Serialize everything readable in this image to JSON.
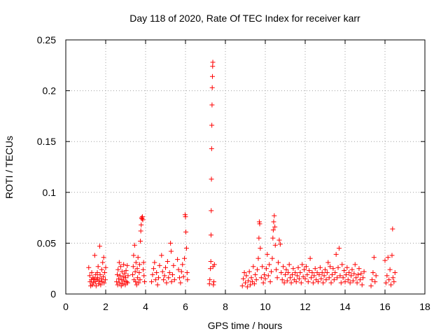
{
  "chart_data": {
    "type": "scatter",
    "title": "Day 118 of 2020, Rate Of TEC Index for receiver karr",
    "xlabel": "GPS time / hours",
    "ylabel": "ROTI / TECUs",
    "xlim": [
      0,
      18
    ],
    "ylim": [
      0,
      0.25
    ],
    "xticks": [
      0,
      2,
      4,
      6,
      8,
      10,
      12,
      14,
      16,
      18
    ],
    "xtick_labels": [
      "0",
      "2",
      "4",
      "6",
      "8",
      "10",
      "12",
      "14",
      "16",
      "18"
    ],
    "yticks": [
      0,
      0.05,
      0.1,
      0.15,
      0.2,
      0.25
    ],
    "ytick_labels": [
      "0",
      "0.05",
      "0.1",
      "0.15",
      "0.2",
      "0.25"
    ],
    "grid": true,
    "marker": "+",
    "colors": {
      "marker": "#ff0000",
      "axes": "#000000",
      "grid": "#a0a0a0",
      "background": "#ffffff"
    },
    "series": [
      {
        "name": "ROTI",
        "points": [
          [
            1.15,
            0.026
          ],
          [
            1.2,
            0.018
          ],
          [
            1.22,
            0.012
          ],
          [
            1.25,
            0.008
          ],
          [
            1.28,
            0.014
          ],
          [
            1.3,
            0.021
          ],
          [
            1.33,
            0.009
          ],
          [
            1.36,
            0.016
          ],
          [
            1.38,
            0.011
          ],
          [
            1.42,
            0.015
          ],
          [
            1.45,
            0.038
          ],
          [
            1.48,
            0.012
          ],
          [
            1.5,
            0.019
          ],
          [
            1.52,
            0.008
          ],
          [
            1.55,
            0.014
          ],
          [
            1.58,
            0.021
          ],
          [
            1.6,
            0.016
          ],
          [
            1.62,
            0.027
          ],
          [
            1.65,
            0.01
          ],
          [
            1.68,
            0.013
          ],
          [
            1.7,
            0.047
          ],
          [
            1.72,
            0.019
          ],
          [
            1.75,
            0.009
          ],
          [
            1.78,
            0.015
          ],
          [
            1.8,
            0.024
          ],
          [
            1.82,
            0.012
          ],
          [
            1.85,
            0.031
          ],
          [
            1.88,
            0.017
          ],
          [
            1.9,
            0.036
          ],
          [
            1.92,
            0.011
          ],
          [
            1.95,
            0.021
          ],
          [
            1.98,
            0.014
          ],
          [
            2.0,
            0.026
          ],
          [
            2.55,
            0.012
          ],
          [
            2.58,
            0.019
          ],
          [
            2.6,
            0.009
          ],
          [
            2.62,
            0.024
          ],
          [
            2.65,
            0.015
          ],
          [
            2.68,
            0.031
          ],
          [
            2.7,
            0.011
          ],
          [
            2.72,
            0.018
          ],
          [
            2.75,
            0.027
          ],
          [
            2.78,
            0.008
          ],
          [
            2.8,
            0.014
          ],
          [
            2.82,
            0.022
          ],
          [
            2.85,
            0.01
          ],
          [
            2.88,
            0.017
          ],
          [
            2.9,
            0.029
          ],
          [
            2.92,
            0.013
          ],
          [
            2.95,
            0.02
          ],
          [
            2.98,
            0.009
          ],
          [
            3.0,
            0.016
          ],
          [
            3.02,
            0.023
          ],
          [
            3.05,
            0.012
          ],
          [
            3.08,
            0.028
          ],
          [
            3.1,
            0.011
          ],
          [
            3.12,
            0.018
          ],
          [
            3.35,
            0.019
          ],
          [
            3.38,
            0.027
          ],
          [
            3.4,
            0.038
          ],
          [
            3.42,
            0.014
          ],
          [
            3.45,
            0.048
          ],
          [
            3.48,
            0.022
          ],
          [
            3.5,
            0.012
          ],
          [
            3.52,
            0.031
          ],
          [
            3.55,
            0.009
          ],
          [
            3.58,
            0.025
          ],
          [
            3.6,
            0.016
          ],
          [
            3.62,
            0.036
          ],
          [
            3.65,
            0.011
          ],
          [
            3.68,
            0.021
          ],
          [
            3.7,
            0.029
          ],
          [
            3.72,
            0.014
          ],
          [
            3.74,
            0.052
          ],
          [
            3.76,
            0.062
          ],
          [
            3.78,
            0.068
          ],
          [
            3.8,
            0.075
          ],
          [
            3.82,
            0.074
          ],
          [
            3.84,
            0.076
          ],
          [
            3.86,
            0.073
          ],
          [
            3.88,
            0.024
          ],
          [
            3.9,
            0.031
          ],
          [
            3.92,
            0.018
          ],
          [
            3.95,
            0.012
          ],
          [
            4.3,
            0.012
          ],
          [
            4.35,
            0.019
          ],
          [
            4.4,
            0.025
          ],
          [
            4.45,
            0.031
          ],
          [
            4.5,
            0.014
          ],
          [
            4.55,
            0.021
          ],
          [
            4.6,
            0.009
          ],
          [
            4.65,
            0.016
          ],
          [
            4.7,
            0.028
          ],
          [
            4.8,
            0.038
          ],
          [
            4.85,
            0.022
          ],
          [
            4.9,
            0.014
          ],
          [
            4.95,
            0.018
          ],
          [
            5.0,
            0.026
          ],
          [
            5.05,
            0.011
          ],
          [
            5.1,
            0.032
          ],
          [
            5.15,
            0.016
          ],
          [
            5.2,
            0.021
          ],
          [
            5.25,
            0.05
          ],
          [
            5.28,
            0.042
          ],
          [
            5.3,
            0.012
          ],
          [
            5.35,
            0.019
          ],
          [
            5.4,
            0.028
          ],
          [
            5.45,
            0.014
          ],
          [
            5.6,
            0.034
          ],
          [
            5.65,
            0.024
          ],
          [
            5.7,
            0.016
          ],
          [
            5.75,
            0.011
          ],
          [
            5.8,
            0.022
          ],
          [
            5.85,
            0.029
          ],
          [
            5.9,
            0.017
          ],
          [
            5.95,
            0.035
          ],
          [
            5.98,
            0.078
          ],
          [
            6.0,
            0.076
          ],
          [
            6.02,
            0.061
          ],
          [
            6.05,
            0.045
          ],
          [
            6.08,
            0.021
          ],
          [
            6.1,
            0.014
          ],
          [
            7.2,
            0.01
          ],
          [
            7.22,
            0.014
          ],
          [
            7.25,
            0.025
          ],
          [
            7.27,
            0.032
          ],
          [
            7.28,
            0.058
          ],
          [
            7.29,
            0.082
          ],
          [
            7.3,
            0.113
          ],
          [
            7.31,
            0.143
          ],
          [
            7.32,
            0.166
          ],
          [
            7.33,
            0.186
          ],
          [
            7.34,
            0.203
          ],
          [
            7.35,
            0.214
          ],
          [
            7.36,
            0.224
          ],
          [
            7.37,
            0.228
          ],
          [
            7.38,
            0.027
          ],
          [
            7.4,
            0.009
          ],
          [
            7.42,
            0.012
          ],
          [
            7.45,
            0.029
          ],
          [
            8.85,
            0.008
          ],
          [
            8.9,
            0.015
          ],
          [
            8.95,
            0.021
          ],
          [
            9.0,
            0.011
          ],
          [
            9.05,
            0.018
          ],
          [
            9.1,
            0.007
          ],
          [
            9.15,
            0.013
          ],
          [
            9.2,
            0.022
          ],
          [
            9.25,
            0.009
          ],
          [
            9.3,
            0.016
          ],
          [
            9.35,
            0.012
          ],
          [
            9.4,
            0.027
          ],
          [
            9.45,
            0.01
          ],
          [
            9.5,
            0.019
          ],
          [
            9.55,
            0.014
          ],
          [
            9.6,
            0.024
          ],
          [
            9.65,
            0.035
          ],
          [
            9.68,
            0.055
          ],
          [
            9.7,
            0.071
          ],
          [
            9.72,
            0.069
          ],
          [
            9.75,
            0.045
          ],
          [
            9.8,
            0.016
          ],
          [
            9.85,
            0.027
          ],
          [
            9.9,
            0.011
          ],
          [
            9.95,
            0.019
          ],
          [
            10.0,
            0.015
          ],
          [
            10.05,
            0.025
          ],
          [
            10.1,
            0.039
          ],
          [
            10.15,
            0.018
          ],
          [
            10.2,
            0.029
          ],
          [
            10.25,
            0.012
          ],
          [
            10.3,
            0.022
          ],
          [
            10.35,
            0.035
          ],
          [
            10.38,
            0.055
          ],
          [
            10.4,
            0.063
          ],
          [
            10.42,
            0.071
          ],
          [
            10.45,
            0.077
          ],
          [
            10.48,
            0.066
          ],
          [
            10.5,
            0.048
          ],
          [
            10.55,
            0.024
          ],
          [
            10.6,
            0.016
          ],
          [
            10.65,
            0.031
          ],
          [
            10.7,
            0.053
          ],
          [
            10.75,
            0.049
          ],
          [
            10.8,
            0.021
          ],
          [
            10.85,
            0.014
          ],
          [
            10.9,
            0.027
          ],
          [
            10.95,
            0.011
          ],
          [
            11.0,
            0.019
          ],
          [
            11.05,
            0.024
          ],
          [
            11.1,
            0.013
          ],
          [
            11.15,
            0.021
          ],
          [
            11.2,
            0.029
          ],
          [
            11.25,
            0.016
          ],
          [
            11.3,
            0.011
          ],
          [
            11.35,
            0.019
          ],
          [
            11.4,
            0.025
          ],
          [
            11.45,
            0.014
          ],
          [
            11.5,
            0.021
          ],
          [
            11.55,
            0.012
          ],
          [
            11.6,
            0.018
          ],
          [
            11.65,
            0.026
          ],
          [
            11.7,
            0.015
          ],
          [
            11.75,
            0.021
          ],
          [
            11.8,
            0.011
          ],
          [
            11.85,
            0.029
          ],
          [
            11.9,
            0.017
          ],
          [
            11.95,
            0.024
          ],
          [
            12.0,
            0.015
          ],
          [
            12.05,
            0.027
          ],
          [
            12.1,
            0.019
          ],
          [
            12.15,
            0.012
          ],
          [
            12.2,
            0.023
          ],
          [
            12.25,
            0.035
          ],
          [
            12.3,
            0.016
          ],
          [
            12.35,
            0.021
          ],
          [
            12.4,
            0.011
          ],
          [
            12.45,
            0.018
          ],
          [
            12.5,
            0.025
          ],
          [
            12.55,
            0.014
          ],
          [
            12.6,
            0.021
          ],
          [
            12.65,
            0.012
          ],
          [
            12.7,
            0.019
          ],
          [
            12.75,
            0.026
          ],
          [
            12.8,
            0.015
          ],
          [
            12.85,
            0.021
          ],
          [
            12.9,
            0.011
          ],
          [
            12.95,
            0.018
          ],
          [
            13.0,
            0.024
          ],
          [
            13.05,
            0.014
          ],
          [
            13.1,
            0.021
          ],
          [
            13.15,
            0.031
          ],
          [
            13.2,
            0.016
          ],
          [
            13.25,
            0.027
          ],
          [
            13.3,
            0.011
          ],
          [
            13.35,
            0.019
          ],
          [
            13.4,
            0.025
          ],
          [
            13.45,
            0.014
          ],
          [
            13.5,
            0.021
          ],
          [
            13.55,
            0.039
          ],
          [
            13.6,
            0.016
          ],
          [
            13.65,
            0.026
          ],
          [
            13.7,
            0.045
          ],
          [
            13.75,
            0.018
          ],
          [
            13.8,
            0.011
          ],
          [
            13.85,
            0.029
          ],
          [
            13.9,
            0.016
          ],
          [
            13.95,
            0.023
          ],
          [
            14.0,
            0.012
          ],
          [
            14.05,
            0.019
          ],
          [
            14.1,
            0.026
          ],
          [
            14.15,
            0.014
          ],
          [
            14.2,
            0.021
          ],
          [
            14.25,
            0.011
          ],
          [
            14.3,
            0.018
          ],
          [
            14.35,
            0.024
          ],
          [
            14.4,
            0.013
          ],
          [
            14.45,
            0.02
          ],
          [
            14.5,
            0.029
          ],
          [
            14.55,
            0.016
          ],
          [
            14.6,
            0.011
          ],
          [
            14.65,
            0.019
          ],
          [
            14.7,
            0.025
          ],
          [
            14.75,
            0.014
          ],
          [
            14.8,
            0.02
          ],
          [
            14.85,
            0.009
          ],
          [
            14.9,
            0.016
          ],
          [
            14.95,
            0.022
          ],
          [
            15.3,
            0.008
          ],
          [
            15.35,
            0.014
          ],
          [
            15.4,
            0.021
          ],
          [
            15.45,
            0.036
          ],
          [
            15.5,
            0.012
          ],
          [
            15.55,
            0.018
          ],
          [
            16.0,
            0.033
          ],
          [
            16.05,
            0.011
          ],
          [
            16.1,
            0.018
          ],
          [
            16.15,
            0.036
          ],
          [
            16.2,
            0.014
          ],
          [
            16.25,
            0.024
          ],
          [
            16.3,
            0.009
          ],
          [
            16.35,
            0.038
          ],
          [
            16.38,
            0.064
          ],
          [
            16.4,
            0.016
          ],
          [
            16.45,
            0.012
          ],
          [
            16.5,
            0.021
          ]
        ]
      }
    ]
  }
}
